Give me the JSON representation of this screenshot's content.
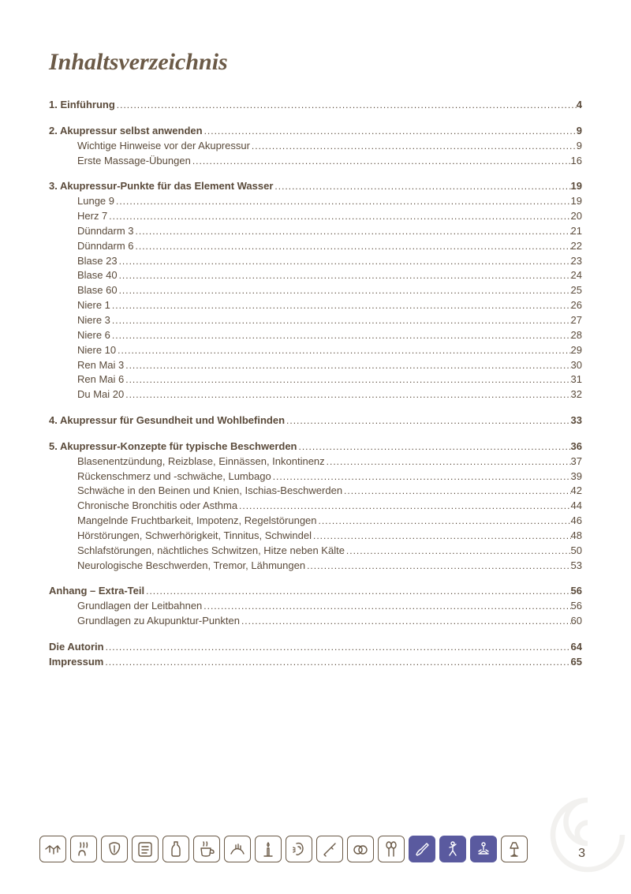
{
  "title": "Inhaltsverzeichnis",
  "page_number": "3",
  "colors": {
    "text": "#5a4a3a",
    "accent": "#5a5a9f",
    "icon_stroke": "#6b5a47",
    "background": "#ffffff"
  },
  "sections": [
    {
      "entries": [
        {
          "label": "1. Einführung",
          "page": "4",
          "bold": true,
          "indent": false
        }
      ]
    },
    {
      "entries": [
        {
          "label": "2. Akupressur selbst anwenden",
          "page": "9",
          "bold": true,
          "indent": false
        },
        {
          "label": "Wichtige Hinweise vor der Akupressur",
          "page": "9",
          "bold": false,
          "indent": true
        },
        {
          "label": "Erste Massage-Übungen",
          "page": "16",
          "bold": false,
          "indent": true
        }
      ]
    },
    {
      "entries": [
        {
          "label": "3. Akupressur-Punkte für das Element Wasser",
          "page": "19",
          "bold": true,
          "indent": false
        },
        {
          "label": "Lunge 9",
          "page": "19",
          "bold": false,
          "indent": true
        },
        {
          "label": "Herz 7",
          "page": "20",
          "bold": false,
          "indent": true
        },
        {
          "label": "Dünndarm 3",
          "page": "21",
          "bold": false,
          "indent": true
        },
        {
          "label": "Dünndarm 6",
          "page": "22",
          "bold": false,
          "indent": true
        },
        {
          "label": "Blase 23",
          "page": "23",
          "bold": false,
          "indent": true
        },
        {
          "label": "Blase 40",
          "page": "24",
          "bold": false,
          "indent": true
        },
        {
          "label": "Blase 60",
          "page": "25",
          "bold": false,
          "indent": true
        },
        {
          "label": "Niere 1",
          "page": "26",
          "bold": false,
          "indent": true
        },
        {
          "label": "Niere 3",
          "page": "27",
          "bold": false,
          "indent": true
        },
        {
          "label": "Niere 6",
          "page": "28",
          "bold": false,
          "indent": true
        },
        {
          "label": "Niere 10",
          "page": "29",
          "bold": false,
          "indent": true
        },
        {
          "label": "Ren Mai 3",
          "page": "30",
          "bold": false,
          "indent": true
        },
        {
          "label": "Ren Mai 6",
          "page": "31",
          "bold": false,
          "indent": true
        },
        {
          "label": "Du Mai 20",
          "page": "32",
          "bold": false,
          "indent": true
        }
      ]
    },
    {
      "entries": [
        {
          "label": "4. Akupressur für Gesundheit und Wohlbefinden",
          "page": "33",
          "bold": true,
          "indent": false
        }
      ]
    },
    {
      "entries": [
        {
          "label": "5. Akupressur-Konzepte für typische Beschwerden",
          "page": "36",
          "bold": true,
          "indent": false
        },
        {
          "label": "Blasenentzündung, Reizblase, Einnässen, Inkontinenz",
          "page": "37",
          "bold": false,
          "indent": true
        },
        {
          "label": "Rückenschmerz und -schwäche, Lumbago",
          "page": "39",
          "bold": false,
          "indent": true
        },
        {
          "label": "Schwäche in den Beinen und Knien, Ischias-Beschwerden",
          "page": "42",
          "bold": false,
          "indent": true
        },
        {
          "label": "Chronische Bronchitis oder Asthma",
          "page": "44",
          "bold": false,
          "indent": true
        },
        {
          "label": "Mangelnde Fruchtbarkeit, Impotenz, Regelstörungen",
          "page": "46",
          "bold": false,
          "indent": true
        },
        {
          "label": "Hörstörungen, Schwerhörigkeit, Tinnitus, Schwindel",
          "page": "48",
          "bold": false,
          "indent": true
        },
        {
          "label": "Schlafstörungen, nächtliches Schwitzen, Hitze neben Kälte",
          "page": "50",
          "bold": false,
          "indent": true
        },
        {
          "label": "Neurologische Beschwerden, Tremor, Lähmungen",
          "page": "53",
          "bold": false,
          "indent": true
        }
      ]
    },
    {
      "entries": [
        {
          "label": "Anhang – Extra-Teil",
          "page": "56",
          "bold": true,
          "indent": false
        },
        {
          "label": "Grundlagen der Leitbahnen",
          "page": "56",
          "bold": false,
          "indent": true
        },
        {
          "label": "Grundlagen zu Akupunktur-Punkten",
          "page": "60",
          "bold": false,
          "indent": true
        }
      ]
    },
    {
      "entries": [
        {
          "label": "Die Autorin",
          "page": "64",
          "bold": true,
          "indent": false
        },
        {
          "label": "Impressum",
          "page": "65",
          "bold": true,
          "indent": false
        }
      ]
    }
  ],
  "icons": [
    {
      "name": "handshake-icon",
      "filled": false
    },
    {
      "name": "steam-icon",
      "filled": false
    },
    {
      "name": "tongue-icon",
      "filled": false
    },
    {
      "name": "scroll-icon",
      "filled": false
    },
    {
      "name": "bottle-icon",
      "filled": false
    },
    {
      "name": "teacup-icon",
      "filled": false
    },
    {
      "name": "massage-hand-icon",
      "filled": false
    },
    {
      "name": "candle-icon",
      "filled": false
    },
    {
      "name": "ear-icon",
      "filled": false
    },
    {
      "name": "needle-icon",
      "filled": false
    },
    {
      "name": "rings-icon",
      "filled": false
    },
    {
      "name": "spoons-icon",
      "filled": false
    },
    {
      "name": "brush-icon",
      "filled": true
    },
    {
      "name": "stretch-person-icon",
      "filled": true
    },
    {
      "name": "meditation-icon",
      "filled": true
    },
    {
      "name": "lamp-icon",
      "filled": false
    }
  ]
}
